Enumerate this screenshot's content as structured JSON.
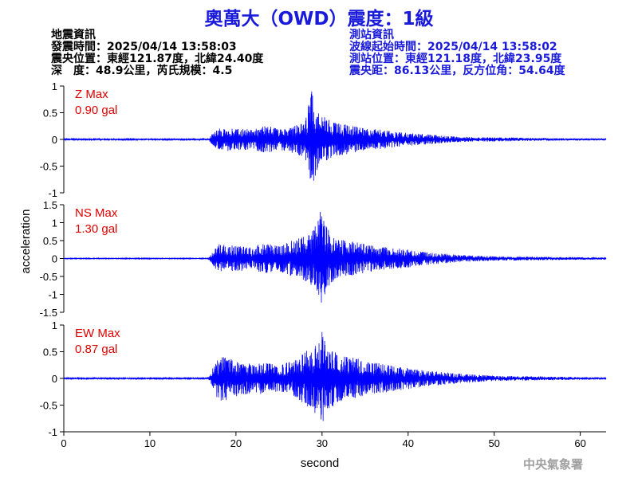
{
  "title": "奧萬大（OWD）震度：1級",
  "info_left": {
    "heading": "地震資訊",
    "origin_time": "發震時間：2025/04/14 13:58:03",
    "epicenter": "震央位置：東經121.87度，北緯24.40度",
    "depth_magnitude": "深　度：48.9公里，芮氏規模：4.5"
  },
  "info_right": {
    "heading": "測站資訊",
    "wave_start": "波線起始時間：2025/04/14 13:58:02",
    "station_location": "測站位置：東經121.18度，北緯23.95度",
    "distance_azimuth": "震央距：86.13公里，反方位角：54.64度"
  },
  "footer_mark": "中央氣象署",
  "colors": {
    "trace": "#0000ff",
    "label": "#e00000",
    "title": "#1a1adb",
    "axis": "#000000"
  },
  "chart_data": {
    "type": "line",
    "xlabel": "second",
    "ylabel": "acceleration",
    "xlim": [
      0,
      63
    ],
    "x_ticks": [
      "0",
      "10",
      "20",
      "30",
      "40",
      "50",
      "60"
    ],
    "x_tick_values": [
      0,
      10,
      20,
      30,
      40,
      50,
      60
    ],
    "grid": false,
    "panels": [
      {
        "component": "Z",
        "label": "Z Max",
        "max_value": "0.90 gal",
        "ylim": [
          -1,
          1
        ],
        "y_ticks": [
          "1",
          "0.5",
          "0",
          "-0.5",
          "-1"
        ],
        "y_tick_values": [
          1,
          0.5,
          0,
          -0.5,
          -1
        ],
        "envelope": {
          "time": [
            0,
            16.8,
            17.2,
            18,
            19,
            20,
            21,
            22,
            23,
            24,
            25,
            26,
            27,
            28,
            28.8,
            29.5,
            30,
            30.5,
            31,
            32,
            33,
            34,
            35,
            36,
            38,
            40,
            42,
            44,
            46,
            48,
            50,
            54,
            58,
            63
          ],
          "peak": [
            0.01,
            0.01,
            0.1,
            0.2,
            0.22,
            0.2,
            0.2,
            0.18,
            0.25,
            0.25,
            0.2,
            0.22,
            0.28,
            0.35,
            0.9,
            0.55,
            0.45,
            0.4,
            0.35,
            0.3,
            0.28,
            0.24,
            0.22,
            0.2,
            0.16,
            0.12,
            0.1,
            0.07,
            0.05,
            0.04,
            0.04,
            0.03,
            0.02,
            0.02
          ]
        }
      },
      {
        "component": "NS",
        "label": "NS Max",
        "max_value": "1.30 gal",
        "ylim": [
          -1.5,
          1.5
        ],
        "y_ticks": [
          "1.5",
          "1",
          "0.5",
          "0",
          "-0.5",
          "-1",
          "-1.5"
        ],
        "y_tick_values": [
          1.5,
          1,
          0.5,
          0,
          -0.5,
          -1,
          -1.5
        ],
        "envelope": {
          "time": [
            0,
            16.8,
            17.2,
            18,
            19,
            20,
            21,
            22,
            23,
            24,
            25,
            26,
            27,
            28,
            29,
            29.8,
            30.5,
            31,
            32,
            33,
            34,
            35,
            36,
            38,
            40,
            42,
            44,
            46,
            48,
            50,
            54,
            58,
            63
          ],
          "peak": [
            0.01,
            0.01,
            0.15,
            0.4,
            0.4,
            0.35,
            0.35,
            0.3,
            0.45,
            0.4,
            0.35,
            0.45,
            0.55,
            0.65,
            0.8,
            1.3,
            0.9,
            0.7,
            0.55,
            0.5,
            0.45,
            0.4,
            0.35,
            0.3,
            0.25,
            0.18,
            0.14,
            0.1,
            0.08,
            0.06,
            0.05,
            0.04,
            0.03
          ]
        }
      },
      {
        "component": "EW",
        "label": "EW Max",
        "max_value": "0.87 gal",
        "ylim": [
          -1,
          1
        ],
        "y_ticks": [
          "1",
          "0.5",
          "0",
          "-0.5",
          "-1"
        ],
        "y_tick_values": [
          1,
          0.5,
          0,
          -0.5,
          -1
        ],
        "envelope": {
          "time": [
            0,
            16.8,
            17.2,
            18,
            19,
            20,
            21,
            22,
            23,
            24,
            25,
            26,
            27,
            28,
            29,
            30,
            30.5,
            31,
            32,
            33,
            34,
            35,
            36,
            38,
            40,
            42,
            44,
            46,
            48,
            50,
            54,
            58,
            63
          ],
          "peak": [
            0.01,
            0.01,
            0.15,
            0.45,
            0.4,
            0.35,
            0.3,
            0.28,
            0.3,
            0.28,
            0.25,
            0.3,
            0.35,
            0.5,
            0.6,
            0.87,
            0.6,
            0.55,
            0.45,
            0.4,
            0.38,
            0.33,
            0.3,
            0.25,
            0.2,
            0.15,
            0.12,
            0.09,
            0.07,
            0.05,
            0.04,
            0.03,
            0.02
          ]
        }
      }
    ]
  }
}
